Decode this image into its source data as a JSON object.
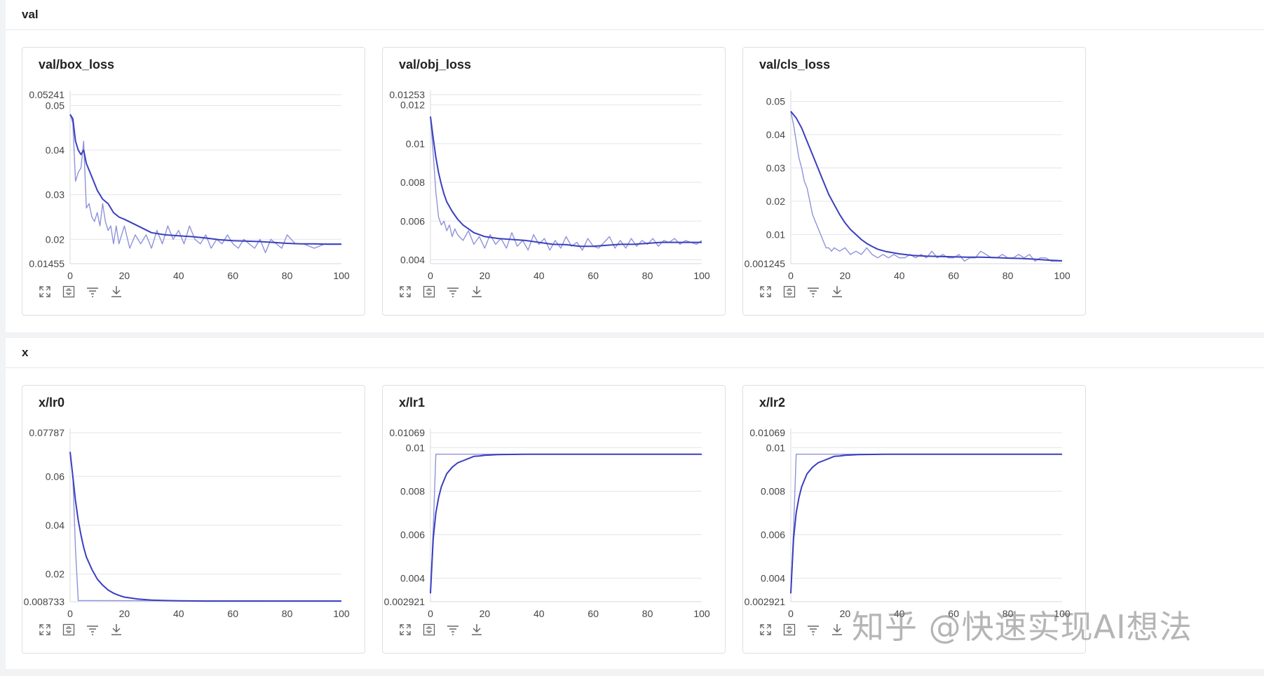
{
  "sections": [
    {
      "title": "val"
    },
    {
      "title": "x"
    }
  ],
  "toolbar_icons": [
    "expand-icon",
    "fit-icon",
    "filter-icon",
    "download-icon"
  ],
  "colors": {
    "smoothed": "#3a3fbd",
    "raw": "#8f93d9",
    "grid": "#e3e5ea"
  },
  "watermark": "知乎 @快速实现AI想法",
  "chart_data": [
    {
      "title": "val/box_loss",
      "type": "line",
      "grid": true,
      "xlim": [
        0,
        100
      ],
      "ylim": [
        0.01455,
        0.05241
      ],
      "xticks": [
        0,
        20,
        40,
        60,
        80,
        100
      ],
      "yticks": [
        0.01455,
        0.02,
        0.03,
        0.04,
        0.05,
        0.05241
      ],
      "ytick_labels": [
        "0.01455",
        "0.02",
        "0.03",
        "0.04",
        "0.05",
        "0.05241"
      ],
      "series": [
        {
          "role": "raw",
          "x": [
            0,
            1,
            2,
            3,
            4,
            5,
            6,
            7,
            8,
            9,
            10,
            11,
            12,
            13,
            14,
            15,
            16,
            17,
            18,
            19,
            20,
            22,
            24,
            26,
            28,
            30,
            32,
            34,
            36,
            38,
            40,
            42,
            44,
            46,
            48,
            50,
            52,
            54,
            56,
            58,
            60,
            62,
            64,
            66,
            68,
            70,
            72,
            74,
            76,
            78,
            80,
            83,
            86,
            90,
            94,
            98,
            100
          ],
          "y": [
            0.048,
            0.046,
            0.033,
            0.035,
            0.036,
            0.042,
            0.027,
            0.028,
            0.025,
            0.024,
            0.026,
            0.023,
            0.028,
            0.024,
            0.022,
            0.023,
            0.019,
            0.023,
            0.019,
            0.021,
            0.023,
            0.018,
            0.021,
            0.019,
            0.021,
            0.018,
            0.022,
            0.019,
            0.023,
            0.02,
            0.022,
            0.019,
            0.023,
            0.02,
            0.019,
            0.021,
            0.018,
            0.02,
            0.019,
            0.021,
            0.019,
            0.018,
            0.02,
            0.019,
            0.018,
            0.02,
            0.017,
            0.02,
            0.019,
            0.018,
            0.021,
            0.019,
            0.019,
            0.018,
            0.019,
            0.019,
            0.019
          ]
        },
        {
          "role": "smoothed",
          "x": [
            0,
            1,
            2,
            3,
            4,
            5,
            6,
            8,
            10,
            12,
            14,
            16,
            18,
            20,
            25,
            30,
            35,
            40,
            45,
            50,
            55,
            60,
            65,
            70,
            75,
            80,
            85,
            90,
            95,
            100
          ],
          "y": [
            0.048,
            0.047,
            0.042,
            0.04,
            0.039,
            0.04,
            0.037,
            0.034,
            0.031,
            0.029,
            0.028,
            0.026,
            0.025,
            0.0245,
            0.023,
            0.0215,
            0.021,
            0.0208,
            0.0206,
            0.0203,
            0.0199,
            0.0197,
            0.0196,
            0.0195,
            0.0193,
            0.0191,
            0.019,
            0.019,
            0.0189,
            0.0189
          ]
        }
      ]
    },
    {
      "title": "val/obj_loss",
      "type": "line",
      "grid": true,
      "xlim": [
        0,
        100
      ],
      "ylim": [
        0.0038,
        0.01253
      ],
      "xticks": [
        0,
        20,
        40,
        60,
        80,
        100
      ],
      "yticks": [
        0.004,
        0.006,
        0.008,
        0.01,
        0.012,
        0.01253
      ],
      "ytick_labels": [
        "0.004",
        "0.006",
        "0.008",
        "0.01",
        "0.012",
        "0.01253"
      ],
      "series": [
        {
          "role": "raw",
          "x": [
            0,
            1,
            2,
            3,
            4,
            5,
            6,
            7,
            8,
            9,
            10,
            12,
            14,
            16,
            18,
            20,
            22,
            24,
            26,
            28,
            30,
            32,
            34,
            36,
            38,
            40,
            42,
            44,
            46,
            48,
            50,
            52,
            54,
            56,
            58,
            60,
            62,
            64,
            66,
            68,
            70,
            72,
            74,
            76,
            78,
            80,
            82,
            84,
            86,
            88,
            90,
            92,
            94,
            96,
            98,
            100
          ],
          "y": [
            0.0114,
            0.0095,
            0.0075,
            0.0062,
            0.0058,
            0.006,
            0.0055,
            0.0058,
            0.0052,
            0.0056,
            0.0053,
            0.005,
            0.0055,
            0.0048,
            0.0052,
            0.0046,
            0.0053,
            0.0048,
            0.0051,
            0.0046,
            0.0054,
            0.0047,
            0.005,
            0.0045,
            0.0053,
            0.0048,
            0.0051,
            0.0045,
            0.005,
            0.0046,
            0.0052,
            0.0047,
            0.0049,
            0.0045,
            0.0051,
            0.0047,
            0.0046,
            0.0049,
            0.0052,
            0.0046,
            0.005,
            0.0046,
            0.0051,
            0.0047,
            0.005,
            0.0048,
            0.0051,
            0.0047,
            0.005,
            0.0049,
            0.0051,
            0.0048,
            0.005,
            0.0049,
            0.0048,
            0.005
          ]
        },
        {
          "role": "smoothed",
          "x": [
            0,
            1,
            2,
            3,
            4,
            5,
            6,
            8,
            10,
            12,
            14,
            16,
            18,
            20,
            25,
            30,
            35,
            40,
            45,
            50,
            55,
            60,
            65,
            70,
            75,
            80,
            85,
            90,
            95,
            100
          ],
          "y": [
            0.0114,
            0.0103,
            0.0093,
            0.0085,
            0.0079,
            0.0074,
            0.007,
            0.0065,
            0.0061,
            0.0058,
            0.0056,
            0.0054,
            0.0053,
            0.0052,
            0.0051,
            0.00505,
            0.005,
            0.0049,
            0.0048,
            0.00478,
            0.0047,
            0.0047,
            0.00475,
            0.0048,
            0.0048,
            0.00485,
            0.0049,
            0.0049,
            0.0049,
            0.0049
          ]
        }
      ]
    },
    {
      "title": "val/cls_loss",
      "type": "line",
      "grid": true,
      "xlim": [
        0,
        100
      ],
      "ylim": [
        0.001245,
        0.052
      ],
      "xticks": [
        0,
        20,
        40,
        60,
        80,
        100
      ],
      "yticks": [
        0.001245,
        0.01,
        0.02,
        0.03,
        0.04,
        0.05
      ],
      "ytick_labels": [
        "0.001245",
        "0.01",
        "0.02",
        "0.03",
        "0.04",
        "0.05"
      ],
      "series": [
        {
          "role": "raw",
          "x": [
            0,
            1,
            2,
            3,
            4,
            5,
            6,
            7,
            8,
            9,
            10,
            11,
            12,
            13,
            14,
            15,
            16,
            18,
            20,
            22,
            24,
            26,
            28,
            30,
            32,
            34,
            36,
            38,
            40,
            42,
            44,
            46,
            48,
            50,
            52,
            54,
            56,
            58,
            60,
            62,
            64,
            66,
            68,
            70,
            72,
            74,
            76,
            78,
            80,
            82,
            84,
            86,
            88,
            90,
            92,
            94,
            96,
            98,
            100
          ],
          "y": [
            0.047,
            0.043,
            0.038,
            0.033,
            0.03,
            0.026,
            0.024,
            0.02,
            0.016,
            0.014,
            0.012,
            0.01,
            0.008,
            0.006,
            0.006,
            0.005,
            0.006,
            0.005,
            0.006,
            0.004,
            0.005,
            0.004,
            0.006,
            0.004,
            0.003,
            0.004,
            0.003,
            0.004,
            0.003,
            0.003,
            0.004,
            0.003,
            0.004,
            0.003,
            0.005,
            0.003,
            0.004,
            0.003,
            0.003,
            0.004,
            0.002,
            0.003,
            0.003,
            0.005,
            0.004,
            0.003,
            0.003,
            0.004,
            0.003,
            0.003,
            0.004,
            0.003,
            0.004,
            0.002,
            0.003,
            0.003,
            0.002,
            0.002,
            0.002
          ]
        },
        {
          "role": "smoothed",
          "x": [
            0,
            2,
            4,
            6,
            8,
            10,
            12,
            14,
            16,
            18,
            20,
            22,
            24,
            26,
            28,
            30,
            32,
            35,
            40,
            45,
            50,
            55,
            60,
            65,
            70,
            75,
            80,
            85,
            90,
            95,
            100
          ],
          "y": [
            0.047,
            0.045,
            0.042,
            0.038,
            0.034,
            0.03,
            0.026,
            0.022,
            0.019,
            0.016,
            0.0135,
            0.0115,
            0.01,
            0.0085,
            0.0073,
            0.0064,
            0.0056,
            0.0049,
            0.0042,
            0.0037,
            0.0035,
            0.0034,
            0.0033,
            0.0032,
            0.0032,
            0.0031,
            0.0029,
            0.0028,
            0.0026,
            0.0023,
            0.0021
          ]
        }
      ]
    },
    {
      "title": "x/lr0",
      "type": "line",
      "grid": true,
      "xlim": [
        0,
        100
      ],
      "ylim": [
        0.008733,
        0.07787
      ],
      "xticks": [
        0,
        20,
        40,
        60,
        80,
        100
      ],
      "yticks": [
        0.008733,
        0.02,
        0.04,
        0.06,
        0.07787
      ],
      "ytick_labels": [
        "0.008733",
        "0.02",
        "0.04",
        "0.06",
        "0.07787"
      ],
      "series": [
        {
          "role": "raw",
          "x": [
            0,
            1,
            2,
            3,
            100
          ],
          "y": [
            0.07,
            0.06,
            0.03,
            0.0092,
            0.009
          ]
        },
        {
          "role": "smoothed",
          "x": [
            0,
            1,
            2,
            3,
            4,
            5,
            6,
            8,
            10,
            12,
            14,
            16,
            18,
            20,
            25,
            30,
            35,
            40,
            50,
            60,
            70,
            80,
            90,
            100
          ],
          "y": [
            0.07,
            0.06,
            0.05,
            0.042,
            0.036,
            0.031,
            0.027,
            0.022,
            0.018,
            0.0155,
            0.0135,
            0.0122,
            0.0113,
            0.0106,
            0.0098,
            0.0094,
            0.0092,
            0.0091,
            0.009,
            0.009,
            0.009,
            0.009,
            0.009,
            0.009
          ]
        }
      ]
    },
    {
      "title": "x/lr1",
      "type": "line",
      "grid": true,
      "xlim": [
        0,
        100
      ],
      "ylim": [
        0.002921,
        0.01069
      ],
      "xticks": [
        0,
        20,
        40,
        60,
        80,
        100
      ],
      "yticks": [
        0.002921,
        0.004,
        0.006,
        0.008,
        0.01,
        0.01069
      ],
      "ytick_labels": [
        "0.002921",
        "0.004",
        "0.006",
        "0.008",
        "0.01",
        "0.01069"
      ],
      "series": [
        {
          "role": "raw",
          "x": [
            0,
            1,
            2,
            100
          ],
          "y": [
            0.0033,
            0.0062,
            0.0097,
            0.0097
          ]
        },
        {
          "role": "smoothed",
          "x": [
            0,
            1,
            2,
            3,
            4,
            5,
            6,
            8,
            10,
            12,
            14,
            16,
            18,
            20,
            25,
            30,
            35,
            40,
            50,
            60,
            70,
            80,
            90,
            100
          ],
          "y": [
            0.0033,
            0.0058,
            0.007,
            0.0077,
            0.0082,
            0.0085,
            0.0088,
            0.0091,
            0.0093,
            0.0094,
            0.0095,
            0.0096,
            0.00962,
            0.00965,
            0.00968,
            0.00969,
            0.0097,
            0.0097,
            0.0097,
            0.0097,
            0.0097,
            0.0097,
            0.0097,
            0.0097
          ]
        }
      ]
    },
    {
      "title": "x/lr2",
      "type": "line",
      "grid": true,
      "xlim": [
        0,
        100
      ],
      "ylim": [
        0.002921,
        0.01069
      ],
      "xticks": [
        0,
        20,
        40,
        60,
        80,
        100
      ],
      "yticks": [
        0.002921,
        0.004,
        0.006,
        0.008,
        0.01,
        0.01069
      ],
      "ytick_labels": [
        "0.002921",
        "0.004",
        "0.006",
        "0.008",
        "0.01",
        "0.01069"
      ],
      "series": [
        {
          "role": "raw",
          "x": [
            0,
            1,
            2,
            100
          ],
          "y": [
            0.0033,
            0.0062,
            0.0097,
            0.0097
          ]
        },
        {
          "role": "smoothed",
          "x": [
            0,
            1,
            2,
            3,
            4,
            5,
            6,
            8,
            10,
            12,
            14,
            16,
            18,
            20,
            25,
            30,
            35,
            40,
            50,
            60,
            70,
            80,
            90,
            100
          ],
          "y": [
            0.0033,
            0.0058,
            0.007,
            0.0077,
            0.0082,
            0.0085,
            0.0088,
            0.0091,
            0.0093,
            0.0094,
            0.0095,
            0.0096,
            0.00962,
            0.00965,
            0.00968,
            0.00969,
            0.0097,
            0.0097,
            0.0097,
            0.0097,
            0.0097,
            0.0097,
            0.0097,
            0.0097
          ]
        }
      ]
    }
  ]
}
